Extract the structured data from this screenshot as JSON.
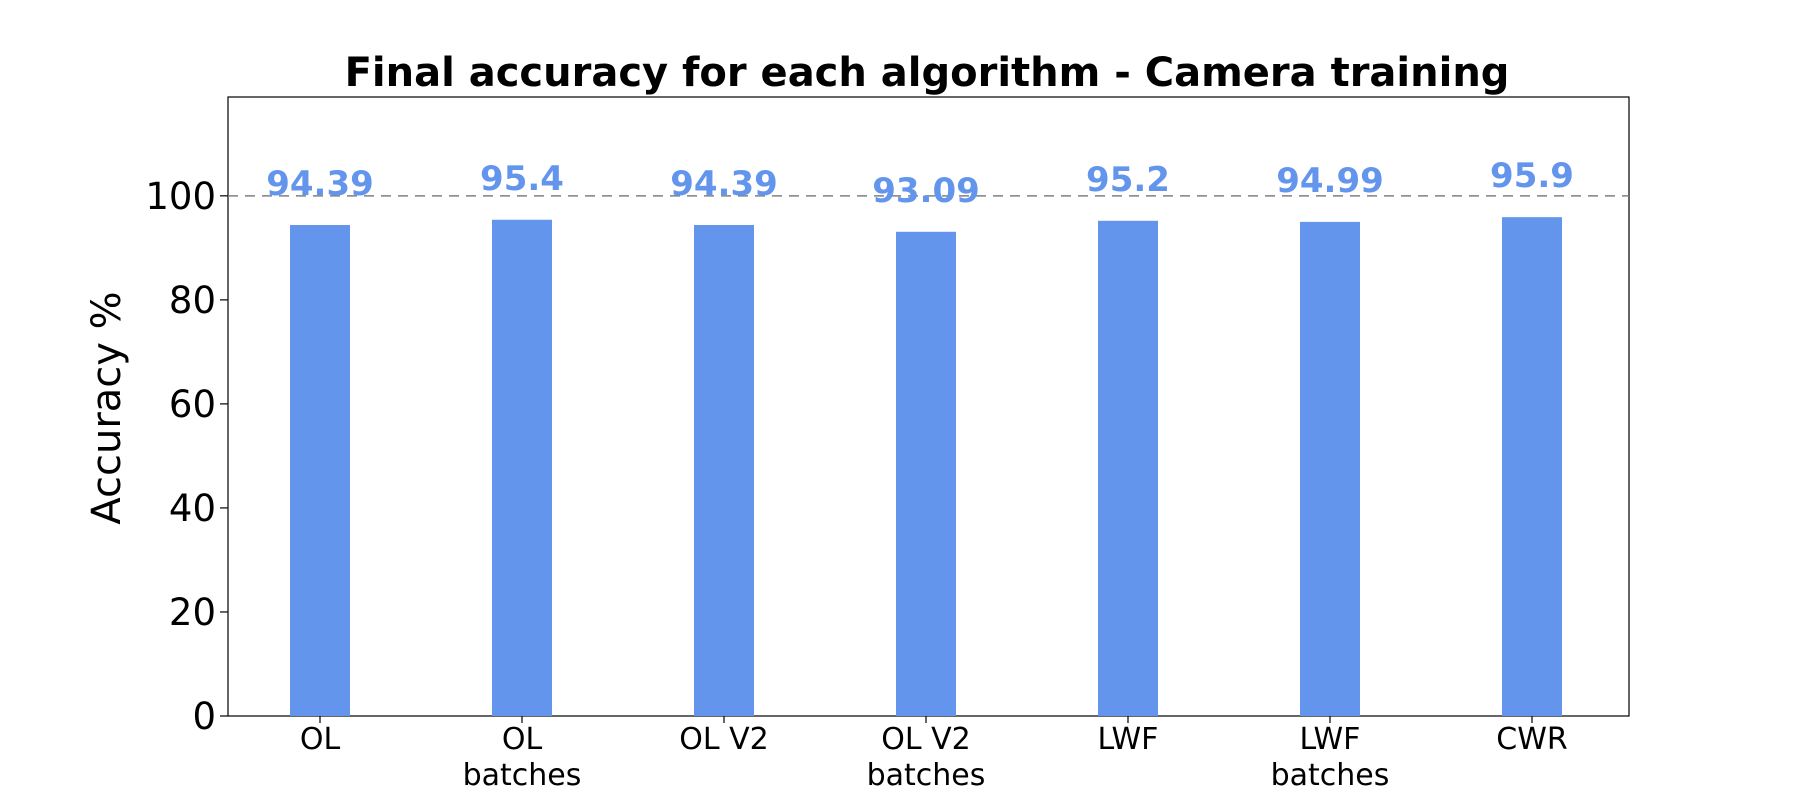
{
  "chart_data": {
    "type": "bar",
    "title": "Final accuracy for each algorithm - Camera training",
    "xlabel": "",
    "ylabel": "Accuracy %",
    "categories": [
      [
        "OL"
      ],
      [
        "OL",
        "batches"
      ],
      [
        "OL V2"
      ],
      [
        "OL V2",
        "batches"
      ],
      [
        "LWF"
      ],
      [
        "LWF",
        "batches"
      ],
      [
        "CWR"
      ]
    ],
    "values": [
      94.39,
      95.4,
      94.39,
      93.09,
      95.2,
      94.99,
      95.9
    ],
    "value_labels": [
      "94.39",
      "95.4",
      "94.39",
      "93.09",
      "95.2",
      "94.99",
      "95.9"
    ],
    "ylim": [
      0,
      119
    ],
    "yticks": [
      0,
      20,
      40,
      60,
      80,
      100
    ],
    "reference_line": 100,
    "grid": false,
    "legend": "none",
    "bar_color": "#6495ED",
    "label_color": "#6495ED",
    "reference_line_color": "#808080"
  }
}
